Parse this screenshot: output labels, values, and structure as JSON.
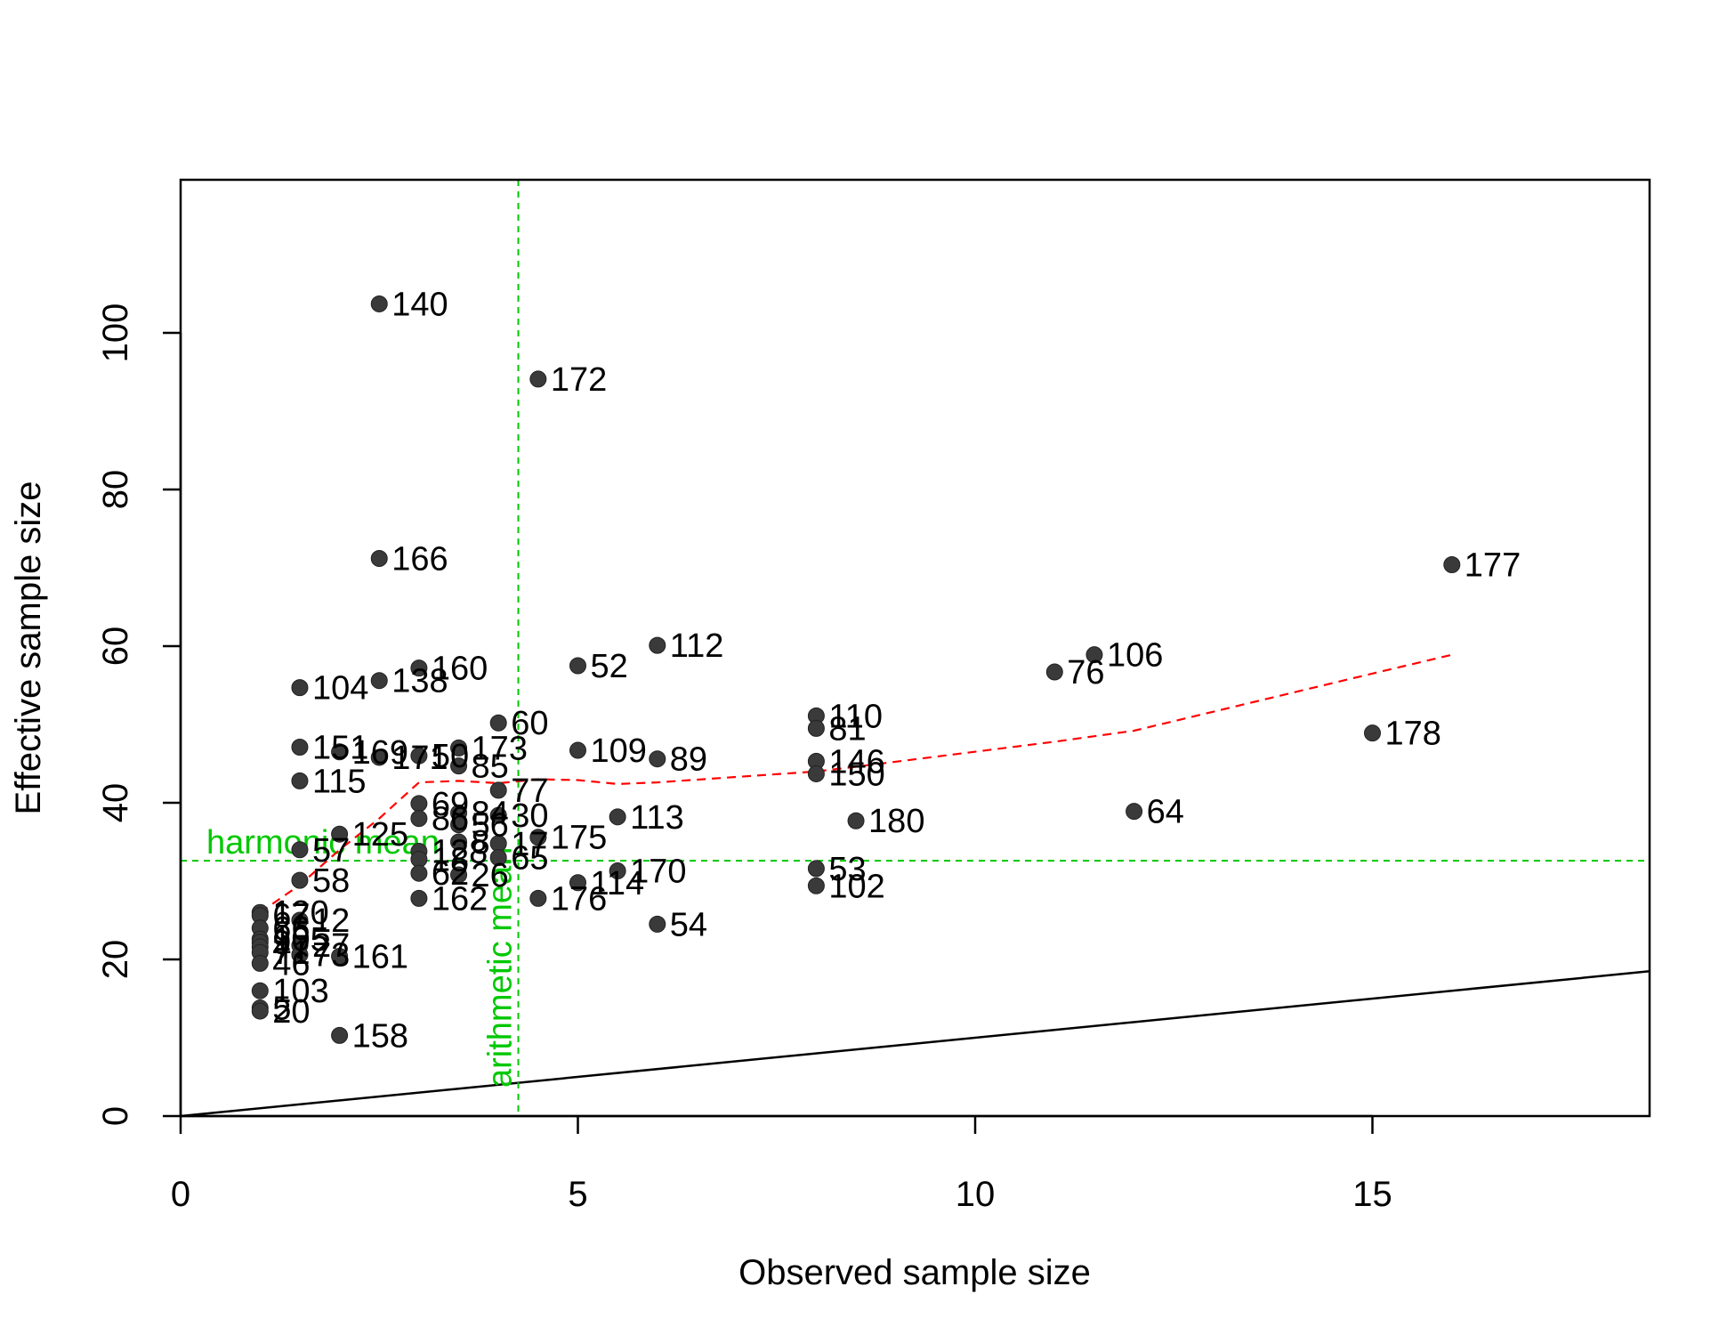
{
  "chart_data": {
    "type": "scatter",
    "title": "",
    "xlabel": "Observed sample size",
    "ylabel": "Effective sample size",
    "xlim": [
      0,
      18.5
    ],
    "ylim": [
      0,
      120
    ],
    "xticks": [
      0,
      5,
      10,
      15
    ],
    "yticks": [
      0,
      20,
      40,
      60,
      80,
      100
    ],
    "point_color": "#3a3a3a",
    "points": [
      {
        "label": "140",
        "x": 2.5,
        "y": 103.7
      },
      {
        "label": "172",
        "x": 4.5,
        "y": 94.1
      },
      {
        "label": "166",
        "x": 2.5,
        "y": 71.2
      },
      {
        "label": "177",
        "x": 16.0,
        "y": 70.4
      },
      {
        "label": "112",
        "x": 6.0,
        "y": 60.1
      },
      {
        "label": "106",
        "x": 11.5,
        "y": 58.9
      },
      {
        "label": "52",
        "x": 5.0,
        "y": 57.5
      },
      {
        "label": "160",
        "x": 3.0,
        "y": 57.2
      },
      {
        "label": "76",
        "x": 11.0,
        "y": 56.7
      },
      {
        "label": "138",
        "x": 2.5,
        "y": 55.6
      },
      {
        "label": "104",
        "x": 1.5,
        "y": 54.7
      },
      {
        "label": "110",
        "x": 8.0,
        "y": 51.1
      },
      {
        "label": "60",
        "x": 4.0,
        "y": 50.2
      },
      {
        "label": "81",
        "x": 8.0,
        "y": 49.5
      },
      {
        "label": "178",
        "x": 15.0,
        "y": 48.9
      },
      {
        "label": "151",
        "x": 1.5,
        "y": 47.1
      },
      {
        "label": "173",
        "x": 3.5,
        "y": 47.0
      },
      {
        "label": "109",
        "x": 5.0,
        "y": 46.7
      },
      {
        "label": "169",
        "x": 2.0,
        "y": 46.5
      },
      {
        "label": "50",
        "x": 3.0,
        "y": 46.0
      },
      {
        "label": "171",
        "x": 2.5,
        "y": 45.8
      },
      {
        "label": "89",
        "x": 6.0,
        "y": 45.6
      },
      {
        "label": "146",
        "x": 8.0,
        "y": 45.3
      },
      {
        "label": "85",
        "x": 3.5,
        "y": 44.7
      },
      {
        "label": "150",
        "x": 8.0,
        "y": 43.7
      },
      {
        "label": "115",
        "x": 1.5,
        "y": 42.8
      },
      {
        "label": "77",
        "x": 4.0,
        "y": 41.6
      },
      {
        "label": "69",
        "x": 3.0,
        "y": 39.9
      },
      {
        "label": "64",
        "x": 12.0,
        "y": 38.9
      },
      {
        "label": "84",
        "x": 3.5,
        "y": 38.7
      },
      {
        "label": "30",
        "x": 4.0,
        "y": 38.4
      },
      {
        "label": "113",
        "x": 5.5,
        "y": 38.2
      },
      {
        "label": "86",
        "x": 3.0,
        "y": 38.0
      },
      {
        "label": "180",
        "x": 8.5,
        "y": 37.7
      },
      {
        "label": "56",
        "x": 3.5,
        "y": 37.2
      },
      {
        "label": "125",
        "x": 2.0,
        "y": 36.0
      },
      {
        "label": "175",
        "x": 4.5,
        "y": 35.6
      },
      {
        "label": "8",
        "x": 3.5,
        "y": 35.0
      },
      {
        "label": "17",
        "x": 4.0,
        "y": 34.8
      },
      {
        "label": "57",
        "x": 1.5,
        "y": 34.0
      },
      {
        "label": "128",
        "x": 3.0,
        "y": 33.8
      },
      {
        "label": "65",
        "x": 4.0,
        "y": 33.0
      },
      {
        "label": "18",
        "x": 3.0,
        "y": 32.8
      },
      {
        "label": "53",
        "x": 8.0,
        "y": 31.6
      },
      {
        "label": "170",
        "x": 5.5,
        "y": 31.3
      },
      {
        "label": "62",
        "x": 3.0,
        "y": 31.0
      },
      {
        "label": "26",
        "x": 3.5,
        "y": 30.8
      },
      {
        "label": "58",
        "x": 1.5,
        "y": 30.1
      },
      {
        "label": "114",
        "x": 5.0,
        "y": 29.8
      },
      {
        "label": "102",
        "x": 8.0,
        "y": 29.4
      },
      {
        "label": "162",
        "x": 3.0,
        "y": 27.8
      },
      {
        "label": "176",
        "x": 4.5,
        "y": 27.8
      },
      {
        "label": "120",
        "x": 1.0,
        "y": 26.0
      },
      {
        "label": "67",
        "x": 1.0,
        "y": 25.6
      },
      {
        "label": "12",
        "x": 1.5,
        "y": 25.0
      },
      {
        "label": "54",
        "x": 6.0,
        "y": 24.5
      },
      {
        "label": "66",
        "x": 1.0,
        "y": 24.0
      },
      {
        "label": "105",
        "x": 1.0,
        "y": 22.6
      },
      {
        "label": "9",
        "x": 1.0,
        "y": 22.2
      },
      {
        "label": "47",
        "x": 1.0,
        "y": 21.6
      },
      {
        "label": "27",
        "x": 1.5,
        "y": 21.8
      },
      {
        "label": "71",
        "x": 1.0,
        "y": 20.9
      },
      {
        "label": "73",
        "x": 1.5,
        "y": 20.6
      },
      {
        "label": "161",
        "x": 2.0,
        "y": 20.4
      },
      {
        "label": "46",
        "x": 1.0,
        "y": 19.5
      },
      {
        "label": "103",
        "x": 1.0,
        "y": 16.0
      },
      {
        "label": "5",
        "x": 1.0,
        "y": 13.8
      },
      {
        "label": "20",
        "x": 1.0,
        "y": 13.4
      },
      {
        "label": "158",
        "x": 2.0,
        "y": 10.3
      }
    ],
    "reference_lines": {
      "identity": {
        "intercept": 0,
        "slope": 1,
        "color": "#000000"
      },
      "harmonic_mean": {
        "label": "harmonic mean",
        "y": 32.6,
        "color": "#00c800"
      },
      "arithmetic_mean": {
        "label": "arithmetic mean",
        "x": 4.25,
        "color": "#00c800"
      }
    },
    "trend": {
      "color": "#ff0000",
      "x": [
        1.0,
        1.5,
        2.0,
        2.5,
        3.0,
        3.5,
        4.0,
        4.5,
        5.0,
        5.5,
        6.0,
        8.0,
        8.5,
        11.0,
        11.5,
        12.0,
        15.0,
        16.0
      ],
      "y": [
        26.0,
        29.5,
        34.0,
        38.0,
        42.6,
        42.8,
        42.5,
        43.0,
        42.9,
        42.4,
        42.6,
        44.0,
        44.6,
        47.8,
        48.5,
        49.2,
        56.5,
        58.9
      ]
    }
  }
}
